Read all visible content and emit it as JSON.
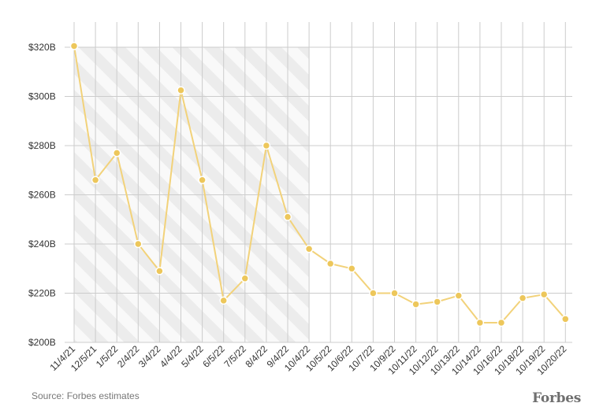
{
  "chart_data": {
    "type": "line",
    "categories": [
      "11/4/21",
      "12/5/21",
      "1/5/22",
      "2/4/22",
      "3/4/22",
      "4/4/22",
      "5/4/22",
      "6/5/22",
      "7/5/22",
      "8/4/22",
      "9/4/22",
      "10/4/22",
      "10/5/22",
      "10/6/22",
      "10/7/22",
      "10/9/22",
      "10/11/22",
      "10/12/22",
      "10/13/22",
      "10/14/22",
      "10/16/22",
      "10/18/22",
      "10/19/22",
      "10/20/22"
    ],
    "values": [
      320.5,
      266,
      277,
      240,
      229,
      302.5,
      266,
      217,
      226,
      280,
      251,
      238,
      232,
      230,
      220,
      220,
      215.5,
      216.5,
      219,
      208,
      208,
      218,
      219.5,
      209.5
    ],
    "y_ticks": [
      "$200B",
      "$220B",
      "$240B",
      "$260B",
      "$280B",
      "$300B",
      "$320B"
    ],
    "y_tick_values": [
      200,
      220,
      240,
      260,
      280,
      300,
      320
    ],
    "ylim": [
      200,
      320
    ],
    "shaded_range": [
      "11/4/21",
      "10/4/22"
    ],
    "grid": true,
    "line_color": "#f2d27a",
    "marker_color": "#edc75b",
    "shade_color": "#ececec",
    "grid_color": "#cccccc"
  },
  "footer": {
    "source": "Source: Forbes estimates",
    "brand": "Forbes"
  }
}
